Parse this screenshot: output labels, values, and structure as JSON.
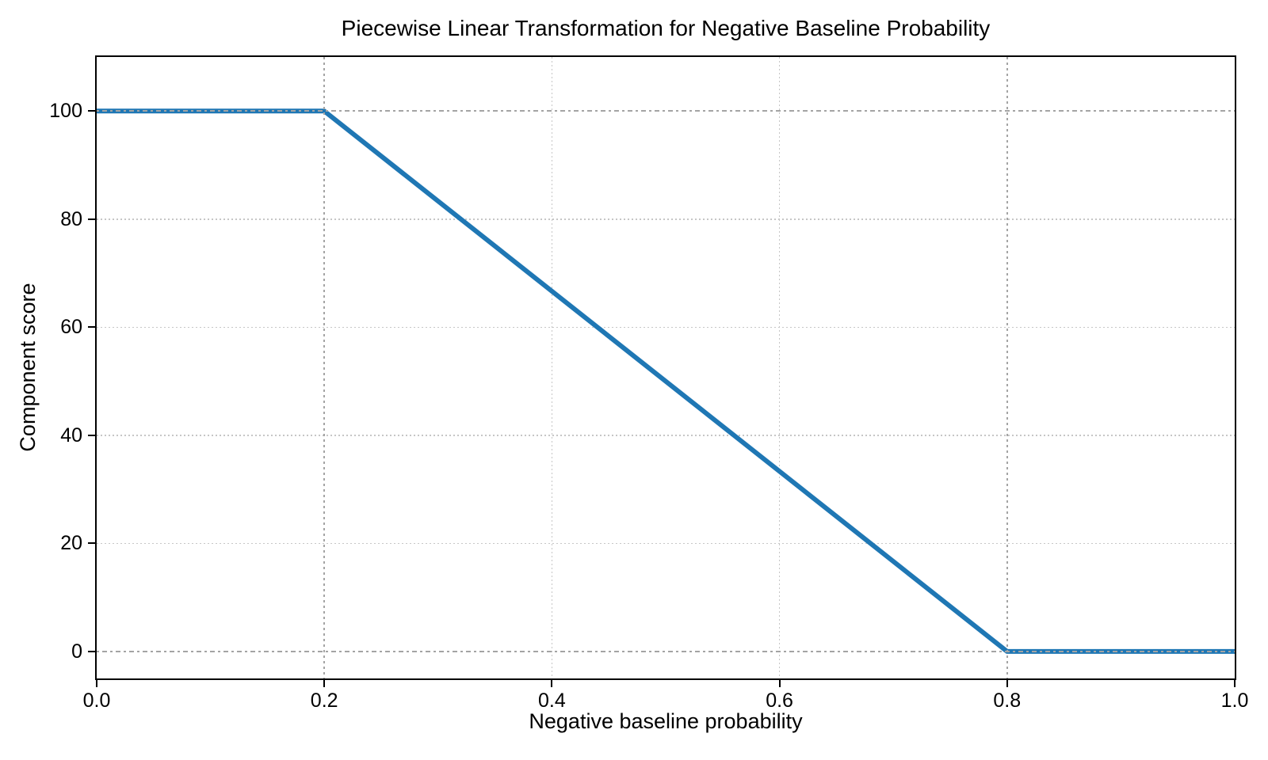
{
  "figure": {
    "background": "#ffffff"
  },
  "chart_data": {
    "type": "line",
    "title": "Piecewise Linear Transformation for Negative Baseline Probability",
    "xlabel": "Negative baseline probability",
    "ylabel": "Component score",
    "xlim": [
      0.0,
      1.0
    ],
    "ylim": [
      -5,
      110
    ],
    "axis_color": "#000000",
    "text_color": "#000000",
    "xticks": {
      "values": [
        0.0,
        0.2,
        0.4,
        0.6,
        0.8,
        1.0
      ],
      "labels": [
        "0.0",
        "0.2",
        "0.4",
        "0.6",
        "0.8",
        "1.0"
      ]
    },
    "yticks": {
      "values": [
        0,
        20,
        40,
        60,
        80,
        100
      ],
      "labels": [
        "0",
        "20",
        "40",
        "60",
        "80",
        "100"
      ]
    },
    "grid": {
      "show": true,
      "style": "dotted",
      "color": "#c6c6c6",
      "x_values": [
        0.4,
        0.6
      ],
      "y_values": [
        20,
        40,
        60,
        80
      ]
    },
    "reference_lines": {
      "color": "#a4a4a4",
      "vertical_style": "dotted",
      "horizontal_style": "dash-dot",
      "vertical_x": [
        0.2,
        0.8
      ],
      "horizontal_y": [
        100,
        0
      ]
    },
    "series": [
      {
        "name": "component-score",
        "color": "#1f77b4",
        "line_width": 6,
        "points": [
          [
            0.0,
            100
          ],
          [
            0.2,
            100
          ],
          [
            0.8,
            0
          ],
          [
            1.0,
            0
          ]
        ]
      }
    ],
    "legend": null
  }
}
